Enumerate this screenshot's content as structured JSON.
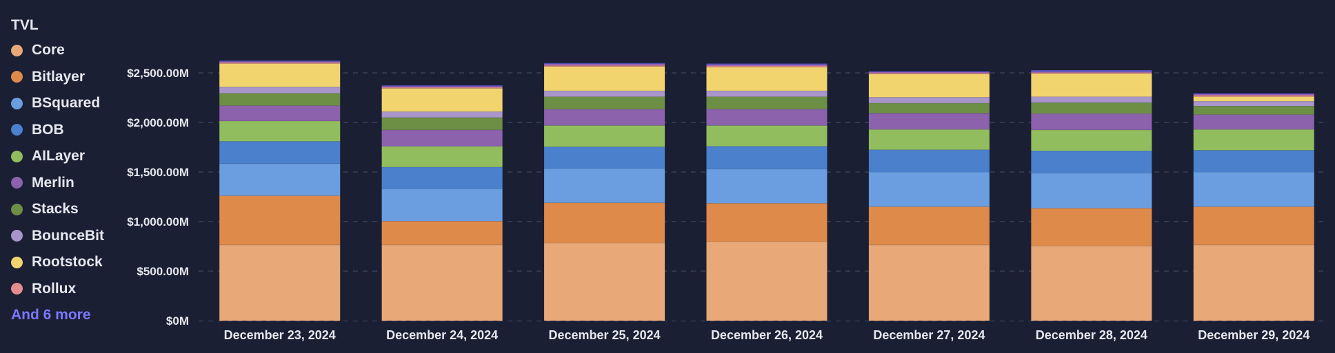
{
  "chart_data": {
    "type": "bar",
    "stacked": true,
    "legend_title": "TVL",
    "legend_more": "And 6 more",
    "legend_more_color": "#7a78ff",
    "categories": [
      "December 23, 2024",
      "December 24, 2024",
      "December 25, 2024",
      "December 26, 2024",
      "December 27, 2024",
      "December 28, 2024",
      "December 29, 2024"
    ],
    "ylim": [
      0,
      2500
    ],
    "yticks": [
      0,
      500,
      1000,
      1500,
      2000,
      2500
    ],
    "ytick_labels": [
      "$0M",
      "$500.00M",
      "$1,000.00M",
      "$1,500.00M",
      "$2,000.00M",
      "$2,500.00M"
    ],
    "grid": true,
    "legend_position": "left",
    "series": [
      {
        "name": "Core",
        "color": "#e8a878",
        "values": [
          765,
          765,
          785,
          795,
          765,
          755,
          765
        ]
      },
      {
        "name": "Bitlayer",
        "color": "#de8a4a",
        "values": [
          495,
          240,
          405,
          390,
          385,
          380,
          385
        ]
      },
      {
        "name": "BSquared",
        "color": "#6a9ee0",
        "values": [
          325,
          325,
          345,
          345,
          350,
          355,
          350
        ]
      },
      {
        "name": "BOB",
        "color": "#4a80cc",
        "values": [
          225,
          220,
          220,
          230,
          225,
          225,
          220
        ]
      },
      {
        "name": "AILayer",
        "color": "#92bd5e",
        "values": [
          205,
          210,
          215,
          210,
          205,
          210,
          210
        ]
      },
      {
        "name": "Merlin",
        "color": "#8c62ad",
        "values": [
          155,
          165,
          165,
          165,
          165,
          165,
          150
        ]
      },
      {
        "name": "Stacks",
        "color": "#6c8f45",
        "values": [
          125,
          125,
          125,
          125,
          100,
          110,
          85
        ]
      },
      {
        "name": "BounceBit",
        "color": "#a895c9",
        "values": [
          65,
          60,
          60,
          60,
          60,
          60,
          50
        ]
      },
      {
        "name": "Rootstock",
        "color": "#f2d46f",
        "values": [
          235,
          235,
          245,
          240,
          235,
          235,
          45
        ]
      },
      {
        "name": "Rollux",
        "color": "#e38e8e",
        "values": [
          10,
          10,
          10,
          10,
          8,
          8,
          15
        ]
      },
      {
        "name": "",
        "color": "#ad6bbf",
        "values": [
          10,
          10,
          15,
          15,
          10,
          10,
          10
        ]
      },
      {
        "name": "",
        "color": "#5a58c8",
        "values": [
          10,
          10,
          10,
          10,
          10,
          15,
          10
        ]
      }
    ]
  }
}
